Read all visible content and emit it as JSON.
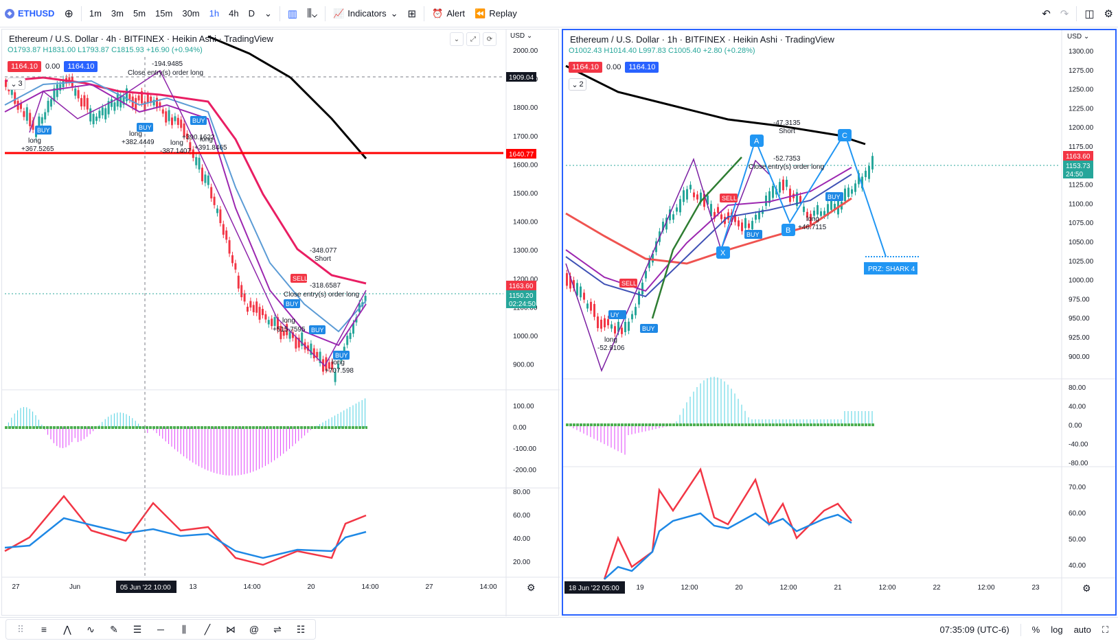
{
  "toolbar": {
    "symbol": "ETHUSD",
    "timeframes": [
      "1m",
      "3m",
      "5m",
      "15m",
      "30m",
      "1h",
      "4h",
      "D"
    ],
    "active_timeframe": "1h",
    "indicators_label": "Indicators",
    "alert_label": "Alert",
    "replay_label": "Replay"
  },
  "left_chart": {
    "title": "Ethereum / U.S. Dollar · 4h · BITFINEX · Heikin Ashi · TradingView",
    "ohlc": "O1793.87 H1831.00 L1793.87 C1815.93 +16.90 (+0.94%)",
    "sell_price": "1164.10",
    "spread": "0.00",
    "buy_price": "1164.10",
    "collapse_count": "3",
    "currency": "USD",
    "price_axis": [
      "2000.00",
      "1900.00",
      "1800.00",
      "1700.00",
      "1600.00",
      "1500.00",
      "1400.00",
      "1300.00",
      "1200.00",
      "1100.00",
      "1000.00",
      "900.00"
    ],
    "price_labels": {
      "crosshair": "1909.04",
      "red_line": "1640.77",
      "last": "1163.60",
      "last2": "1150.20",
      "countdown": "02:24:50"
    },
    "macd_axis": [
      "100.00",
      "0.00",
      "-100.00",
      "-200.00"
    ],
    "osc_axis": [
      "80.00",
      "60.00",
      "40.00",
      "20.00"
    ],
    "time_axis": [
      "27",
      "Jun",
      "14:00",
      "13",
      "14:00",
      "20",
      "14:00",
      "27",
      "14:00"
    ],
    "time_highlight": "05 Jun '22  10:00",
    "annotations": [
      {
        "text": "long"
      },
      {
        "text": "+367.5265"
      },
      {
        "text": "long"
      },
      {
        "text": "+382.4449"
      },
      {
        "text": "long"
      },
      {
        "text": "-387.1407"
      },
      {
        "text": "+390.1622"
      },
      {
        "text": "long"
      },
      {
        "text": "+391.8465"
      },
      {
        "text": "-194.9485"
      },
      {
        "text": "Close entry(s) order long"
      },
      {
        "text": "-348.077"
      },
      {
        "text": "Short"
      },
      {
        "text": "-318.6587"
      },
      {
        "text": "Close entry(s) order long"
      },
      {
        "text": "long"
      },
      {
        "text": "+515.7595"
      },
      {
        "text": "long"
      },
      {
        "text": "+707.598"
      }
    ],
    "signal_tags": [
      "BUY",
      "BUY",
      "BUY",
      "SELL",
      "BUY",
      "BUY",
      "BUY"
    ]
  },
  "right_chart": {
    "title": "Ethereum / U.S. Dollar · 1h · BITFINEX · Heikin Ashi · TradingView",
    "ohlc": "O1002.43 H1014.40 L997.83 C1005.40 +2.80 (+0.28%)",
    "sell_price": "1164.10",
    "spread": "0.00",
    "buy_price": "1164.10",
    "collapse_count": "2",
    "currency": "USD",
    "price_axis": [
      "1300.00",
      "1275.00",
      "1250.00",
      "1225.00",
      "1200.00",
      "1175.00",
      "1150.00",
      "1125.00",
      "1100.00",
      "1075.00",
      "1050.00",
      "1025.00",
      "1000.00",
      "975.00",
      "950.00",
      "925.00",
      "900.00"
    ],
    "price_labels": {
      "last": "1163.60",
      "last2": "1153.73",
      "countdown": "24:50"
    },
    "macd_axis": [
      "80.00",
      "40.00",
      "0.00",
      "-40.00",
      "-80.00"
    ],
    "osc_axis": [
      "70.00",
      "60.00",
      "50.00",
      "40.00"
    ],
    "time_axis": [
      "19",
      "12:00",
      "20",
      "12:00",
      "21",
      "12:00",
      "22",
      "12:00",
      "23"
    ],
    "time_highlight": "18 Jun '22  05:00",
    "pattern_points": [
      "X",
      "A",
      "B",
      "C"
    ],
    "przz_label": "PRZ: SHARK 4",
    "annotations": [
      {
        "text": "-47.3135"
      },
      {
        "text": "Short"
      },
      {
        "text": "-52.7353"
      },
      {
        "text": "Close entry(s) order long"
      },
      {
        "text": "long"
      },
      {
        "text": "+46.7115"
      },
      {
        "text": "long"
      },
      {
        "text": "-52.9106"
      }
    ],
    "signal_tags": [
      "SELL",
      "BUY",
      "BUY",
      "SELL",
      "UY",
      "BUY"
    ]
  },
  "status": {
    "clock": "07:35:09 (UTC-6)",
    "percent": "%",
    "log": "log",
    "auto": "auto"
  },
  "colors": {
    "up": "#26a69a",
    "down": "#f23645",
    "blue": "#2962ff",
    "ma_black": "#000000",
    "ma_pink": "#e91e63",
    "ma_blue": "#5b9bd5",
    "ma_purple": "#9c27b0",
    "cyan_hist": "#4dd0e1",
    "magenta_hist": "#e040fb"
  }
}
